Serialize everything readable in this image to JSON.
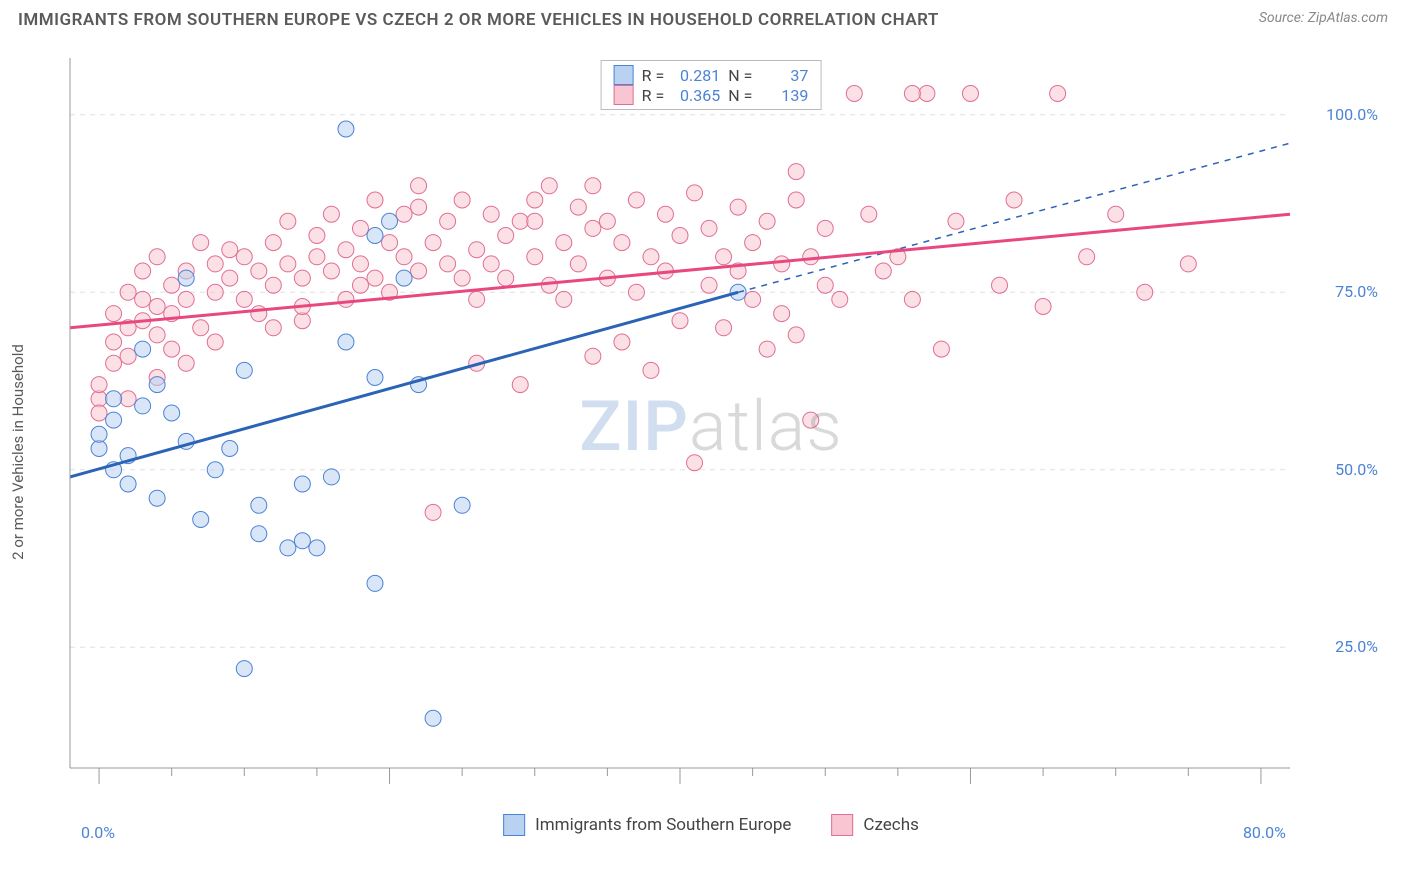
{
  "header": {
    "title": "IMMIGRANTS FROM SOUTHERN EUROPE VS CZECH 2 OR MORE VEHICLES IN HOUSEHOLD CORRELATION CHART",
    "source_prefix": "Source: ",
    "source_name": "ZipAtlas.com"
  },
  "watermark": {
    "a": "ZIP",
    "b": "atlas"
  },
  "axes": {
    "y_label": "2 or more Vehicles in Household",
    "x_ticks": [
      {
        "val": 0,
        "label": "0.0%"
      },
      {
        "val": 80,
        "label": "80.0%"
      }
    ],
    "y_ticks": [
      {
        "val": 25,
        "label": "25.0%"
      },
      {
        "val": 50,
        "label": "50.0%"
      },
      {
        "val": 75,
        "label": "75.0%"
      },
      {
        "val": 100,
        "label": "100.0%"
      }
    ],
    "xlim": [
      -2,
      82
    ],
    "ylim": [
      8,
      108
    ]
  },
  "stats_legend": {
    "series": [
      {
        "r_label": "R =",
        "r": "0.281",
        "n_label": "N =",
        "n": "37",
        "fill": "#b9d2f1",
        "stroke": "#4b83d6"
      },
      {
        "r_label": "R =",
        "r": "0.365",
        "n_label": "N =",
        "n": "139",
        "fill": "#f7c6d2",
        "stroke": "#e16e94"
      }
    ]
  },
  "bottom_legend": {
    "items": [
      {
        "label": "Immigrants from Southern Europe",
        "fill": "#b9d2f1",
        "stroke": "#4b83d6"
      },
      {
        "label": "Czechs",
        "fill": "#f7c6d2",
        "stroke": "#e16e94"
      }
    ]
  },
  "chart": {
    "type": "scatter-with-regression",
    "background_color": "#ffffff",
    "grid_color": "#e0e0e0",
    "axis_color": "#999999",
    "tick_len_major": 16,
    "tick_len_minor": 8,
    "x_minor_step": 5,
    "x_major_vals": [
      0,
      20,
      40,
      60,
      80
    ],
    "marker_radius": 8,
    "marker_opacity": 0.55,
    "series": [
      {
        "name": "blue",
        "fill": "#b9d2f1",
        "stroke": "#4b83d6",
        "line_color": "#2b63b6",
        "regression": {
          "x0": -2,
          "y0": 49,
          "x1": 44,
          "y1": 75,
          "x2": 82,
          "y2": 96,
          "dash_after": 44
        },
        "points": [
          [
            0,
            53
          ],
          [
            0,
            55
          ],
          [
            1,
            57
          ],
          [
            1,
            60
          ],
          [
            1,
            50
          ],
          [
            2,
            48
          ],
          [
            2,
            52
          ],
          [
            3,
            59
          ],
          [
            3,
            67
          ],
          [
            4,
            62
          ],
          [
            4,
            46
          ],
          [
            5,
            58
          ],
          [
            6,
            54
          ],
          [
            6,
            77
          ],
          [
            7,
            43
          ],
          [
            8,
            50
          ],
          [
            9,
            53
          ],
          [
            10,
            64
          ],
          [
            11,
            45
          ],
          [
            11,
            41
          ],
          [
            13,
            39
          ],
          [
            14,
            48
          ],
          [
            14,
            40
          ],
          [
            15,
            39
          ],
          [
            16,
            49
          ],
          [
            17,
            98
          ],
          [
            17,
            68
          ],
          [
            19,
            83
          ],
          [
            19,
            63
          ],
          [
            19,
            34
          ],
          [
            20,
            85
          ],
          [
            21,
            77
          ],
          [
            22,
            62
          ],
          [
            23,
            15
          ],
          [
            25,
            45
          ],
          [
            44,
            75
          ],
          [
            10,
            22
          ]
        ]
      },
      {
        "name": "pink",
        "fill": "#f7c6d2",
        "stroke": "#e16e94",
        "line_color": "#e8487f",
        "regression": {
          "x0": -2,
          "y0": 70,
          "x1": 82,
          "y1": 86
        },
        "points": [
          [
            0,
            60
          ],
          [
            0,
            62
          ],
          [
            0,
            58
          ],
          [
            1,
            65
          ],
          [
            1,
            68
          ],
          [
            1,
            72
          ],
          [
            2,
            70
          ],
          [
            2,
            66
          ],
          [
            2,
            75
          ],
          [
            3,
            71
          ],
          [
            3,
            74
          ],
          [
            3,
            78
          ],
          [
            4,
            73
          ],
          [
            4,
            69
          ],
          [
            4,
            80
          ],
          [
            5,
            72
          ],
          [
            5,
            76
          ],
          [
            5,
            67
          ],
          [
            6,
            78
          ],
          [
            6,
            74
          ],
          [
            7,
            70
          ],
          [
            7,
            82
          ],
          [
            8,
            75
          ],
          [
            8,
            79
          ],
          [
            9,
            77
          ],
          [
            9,
            81
          ],
          [
            10,
            74
          ],
          [
            10,
            80
          ],
          [
            11,
            78
          ],
          [
            11,
            72
          ],
          [
            12,
            76
          ],
          [
            12,
            82
          ],
          [
            13,
            79
          ],
          [
            13,
            85
          ],
          [
            14,
            77
          ],
          [
            14,
            71
          ],
          [
            15,
            80
          ],
          [
            15,
            83
          ],
          [
            16,
            78
          ],
          [
            16,
            86
          ],
          [
            17,
            81
          ],
          [
            17,
            74
          ],
          [
            18,
            84
          ],
          [
            18,
            79
          ],
          [
            19,
            77
          ],
          [
            19,
            88
          ],
          [
            20,
            82
          ],
          [
            20,
            75
          ],
          [
            21,
            86
          ],
          [
            21,
            80
          ],
          [
            22,
            78
          ],
          [
            22,
            87
          ],
          [
            23,
            44
          ],
          [
            23,
            82
          ],
          [
            24,
            79
          ],
          [
            24,
            85
          ],
          [
            25,
            77
          ],
          [
            25,
            88
          ],
          [
            26,
            81
          ],
          [
            26,
            74
          ],
          [
            27,
            86
          ],
          [
            27,
            79
          ],
          [
            28,
            83
          ],
          [
            28,
            77
          ],
          [
            29,
            85
          ],
          [
            29,
            62
          ],
          [
            30,
            80
          ],
          [
            30,
            88
          ],
          [
            31,
            76
          ],
          [
            31,
            90
          ],
          [
            32,
            82
          ],
          [
            32,
            74
          ],
          [
            33,
            87
          ],
          [
            33,
            79
          ],
          [
            34,
            84
          ],
          [
            34,
            90
          ],
          [
            35,
            77
          ],
          [
            35,
            85
          ],
          [
            36,
            68
          ],
          [
            36,
            82
          ],
          [
            37,
            88
          ],
          [
            37,
            75
          ],
          [
            38,
            80
          ],
          [
            38,
            64
          ],
          [
            39,
            86
          ],
          [
            39,
            78
          ],
          [
            40,
            83
          ],
          [
            40,
            71
          ],
          [
            41,
            51
          ],
          [
            41,
            89
          ],
          [
            42,
            76
          ],
          [
            42,
            84
          ],
          [
            43,
            80
          ],
          [
            43,
            70
          ],
          [
            44,
            87
          ],
          [
            44,
            78
          ],
          [
            45,
            82
          ],
          [
            45,
            74
          ],
          [
            46,
            67
          ],
          [
            46,
            85
          ],
          [
            47,
            79
          ],
          [
            47,
            72
          ],
          [
            48,
            88
          ],
          [
            48,
            69
          ],
          [
            49,
            80
          ],
          [
            49,
            57
          ],
          [
            50,
            84
          ],
          [
            50,
            76
          ],
          [
            51,
            74
          ],
          [
            52,
            103
          ],
          [
            53,
            86
          ],
          [
            54,
            78
          ],
          [
            55,
            80
          ],
          [
            56,
            74
          ],
          [
            57,
            103
          ],
          [
            58,
            67
          ],
          [
            59,
            85
          ],
          [
            60,
            103
          ],
          [
            62,
            76
          ],
          [
            63,
            88
          ],
          [
            65,
            73
          ],
          [
            66,
            103
          ],
          [
            68,
            80
          ],
          [
            70,
            86
          ],
          [
            72,
            75
          ],
          [
            75,
            79
          ],
          [
            56,
            103
          ],
          [
            48,
            92
          ],
          [
            30,
            85
          ],
          [
            22,
            90
          ],
          [
            12,
            70
          ],
          [
            8,
            68
          ],
          [
            6,
            65
          ],
          [
            4,
            63
          ],
          [
            2,
            60
          ],
          [
            14,
            73
          ],
          [
            18,
            76
          ],
          [
            26,
            65
          ],
          [
            34,
            66
          ]
        ]
      }
    ]
  }
}
